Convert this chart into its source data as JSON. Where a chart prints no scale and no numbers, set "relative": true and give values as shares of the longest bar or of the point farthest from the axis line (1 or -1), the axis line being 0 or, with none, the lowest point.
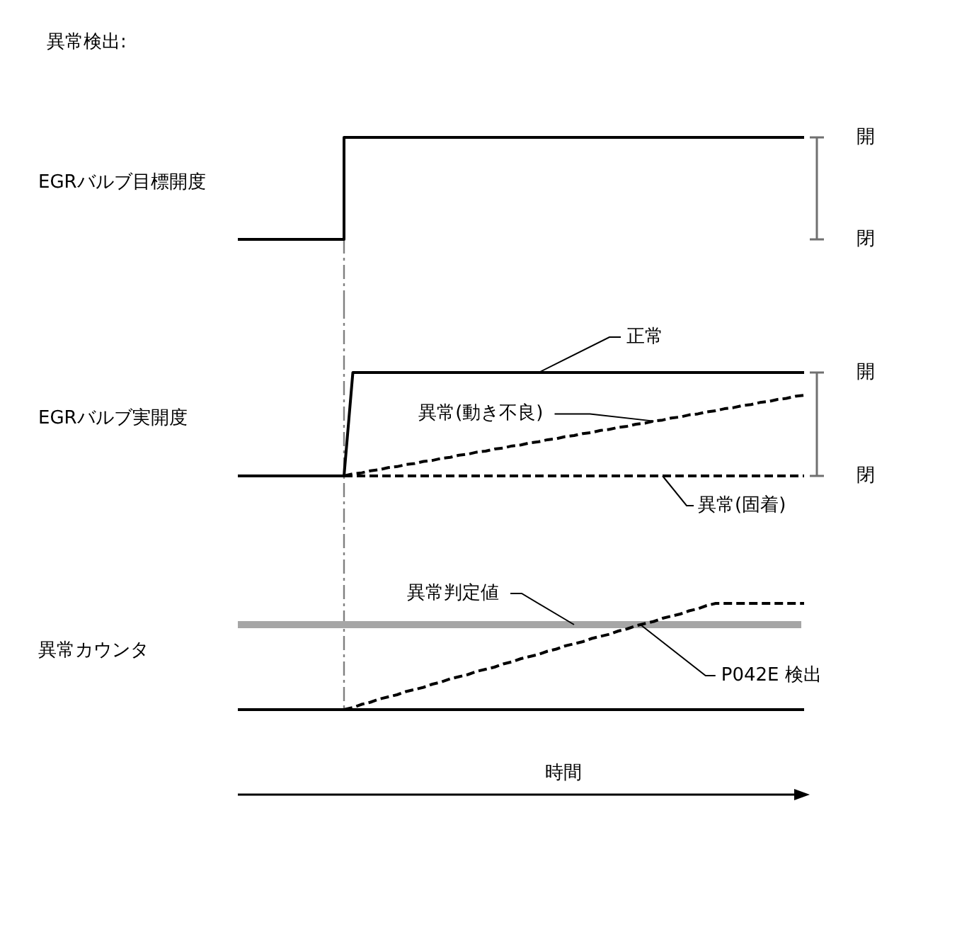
{
  "chart_data": [
    {
      "type": "step",
      "title": "異常検出:",
      "ylabel": "EGRバルブ目標開度",
      "relative": true,
      "categories": [
        null,
        null,
        null,
        null,
        null,
        null,
        null,
        null,
        null,
        null,
        null,
        null,
        null,
        null,
        null,
        null,
        null,
        null,
        null,
        null,
        null,
        null,
        null,
        null,
        null,
        null,
        null,
        null,
        null,
        null,
        null,
        null,
        null,
        null,
        null,
        null,
        null,
        null,
        null,
        null,
        null,
        null,
        null,
        null,
        null,
        null,
        null,
        null,
        null,
        null,
        null,
        null,
        null,
        null,
        null,
        null,
        null,
        null,
        null,
        null,
        null,
        null,
        null,
        null,
        null
      ],
      "series": [
        {
          "color": "#000000",
          "values": [
            0,
            0,
            0,
            0,
            0,
            0,
            0,
            0,
            0,
            0,
            0,
            0,
            1,
            1,
            1,
            1,
            1,
            1,
            1,
            1,
            1,
            1,
            1,
            1,
            1,
            1,
            1,
            1,
            1,
            1,
            1,
            1,
            1,
            1,
            1,
            1,
            1,
            1,
            1,
            1,
            1,
            1,
            1,
            1,
            1,
            1,
            1,
            1,
            1,
            1,
            1,
            1,
            1,
            1,
            1,
            1,
            1,
            1,
            1,
            1,
            1,
            1,
            1,
            1,
            1
          ]
        }
      ],
      "annotations": [
        "開",
        "閉"
      ]
    },
    {
      "type": "line",
      "ylabel": "EGRバルブ実開度",
      "relative": true,
      "categories": [
        null,
        null,
        null,
        null,
        null,
        null,
        null,
        null,
        null,
        null,
        null,
        null,
        null,
        null,
        null,
        null,
        null,
        null,
        null,
        null,
        null,
        null,
        null,
        null,
        null,
        null,
        null,
        null,
        null,
        null,
        null,
        null,
        null,
        null,
        null,
        null,
        null,
        null,
        null,
        null,
        null,
        null,
        null,
        null,
        null,
        null,
        null,
        null,
        null,
        null,
        null,
        null,
        null,
        null,
        null,
        null,
        null,
        null,
        null,
        null,
        null,
        null,
        null,
        null,
        null
      ],
      "series": [
        {
          "name": "正常",
          "color": "#000000",
          "values": [
            0,
            0,
            0,
            0,
            0,
            0,
            0,
            0,
            0,
            0,
            0,
            0,
            0,
            1,
            1,
            1,
            1,
            1,
            1,
            1,
            1,
            1,
            1,
            1,
            1,
            1,
            1,
            1,
            1,
            1,
            1,
            1,
            1,
            1,
            1,
            1,
            1,
            1,
            1,
            1,
            1,
            1,
            1,
            1,
            1,
            1,
            1,
            1,
            1,
            1,
            1,
            1,
            1,
            1,
            1,
            1,
            1,
            1,
            1,
            1,
            1,
            1,
            1,
            1,
            1
          ]
        },
        {
          "name": "異常(動き不良)",
          "color": "#000000",
          "line_style": "dashed",
          "values": [
            null,
            null,
            null,
            null,
            null,
            null,
            null,
            null,
            null,
            null,
            null,
            null,
            0,
            0.02,
            0.03,
            0.05,
            0.06,
            0.08,
            0.09,
            0.11,
            0.12,
            0.14,
            0.15,
            0.17,
            0.18,
            0.2,
            0.21,
            0.23,
            0.24,
            0.26,
            0.27,
            0.29,
            0.3,
            0.32,
            0.33,
            0.35,
            0.36,
            0.38,
            0.39,
            0.41,
            0.42,
            0.44,
            0.45,
            0.47,
            0.48,
            0.5,
            0.51,
            0.53,
            0.54,
            0.56,
            0.57,
            0.59,
            0.6,
            0.62,
            0.63,
            0.65,
            0.66,
            0.68,
            0.69,
            0.71,
            0.72,
            0.74,
            0.75,
            0.77,
            0.78
          ]
        },
        {
          "name": "異常(固着)",
          "color": "#000000",
          "line_style": "dashed",
          "values": [
            null,
            null,
            null,
            null,
            null,
            null,
            null,
            null,
            null,
            null,
            null,
            null,
            0,
            0,
            0,
            0,
            0,
            0,
            0,
            0,
            0,
            0,
            0,
            0,
            0,
            0,
            0,
            0,
            0,
            0,
            0,
            0,
            0,
            0,
            0,
            0,
            0,
            0,
            0,
            0,
            0,
            0,
            0,
            0,
            0,
            0,
            0,
            0,
            0,
            0,
            0,
            0,
            0,
            0,
            0,
            0,
            0,
            0,
            0,
            0,
            0,
            0,
            0,
            0,
            0
          ]
        }
      ],
      "annotations": [
        "開",
        "閉"
      ]
    },
    {
      "type": "line",
      "ylabel": "異常カウンタ",
      "xlabel": "時間",
      "relative": true,
      "categories": [
        null,
        null,
        null,
        null,
        null,
        null,
        null,
        null,
        null,
        null,
        null,
        null,
        null,
        null,
        null,
        null,
        null,
        null,
        null,
        null,
        null,
        null,
        null,
        null,
        null,
        null,
        null,
        null,
        null,
        null,
        null,
        null,
        null,
        null,
        null,
        null,
        null,
        null,
        null,
        null,
        null,
        null,
        null,
        null,
        null,
        null,
        null,
        null,
        null,
        null,
        null,
        null,
        null,
        null,
        null,
        null,
        null,
        null,
        null,
        null,
        null,
        null,
        null,
        null,
        null
      ],
      "series": [
        {
          "color": "#000000",
          "values": [
            0,
            0,
            0,
            0,
            0,
            0,
            0,
            0,
            0,
            0,
            0,
            0,
            0,
            0,
            0,
            0,
            0,
            0,
            0,
            0,
            0,
            0,
            0,
            0,
            0,
            0,
            0,
            0,
            0,
            0,
            0,
            0,
            0,
            0,
            0,
            0,
            0,
            0,
            0,
            0,
            0,
            0,
            0,
            0,
            0,
            0,
            0,
            0,
            0,
            0,
            0,
            0,
            0,
            0,
            0,
            0,
            0,
            0,
            0,
            0,
            0,
            0,
            0,
            0,
            0
          ]
        },
        {
          "color": "#000000",
          "line_style": "dashed",
          "values": [
            null,
            null,
            null,
            null,
            null,
            null,
            null,
            null,
            null,
            null,
            null,
            null,
            0,
            0.02,
            0.05,
            0.07,
            0.1,
            0.12,
            0.14,
            0.17,
            0.19,
            0.21,
            0.24,
            0.26,
            0.29,
            0.31,
            0.33,
            0.36,
            0.38,
            0.4,
            0.43,
            0.45,
            0.48,
            0.5,
            0.52,
            0.55,
            0.57,
            0.6,
            0.62,
            0.64,
            0.67,
            0.69,
            0.71,
            0.74,
            0.76,
            0.79,
            0.81,
            0.83,
            0.86,
            0.88,
            0.9,
            0.93,
            0.95,
            0.98,
            1,
            1,
            1,
            1,
            1,
            1,
            1,
            1,
            1,
            1,
            1
          ]
        }
      ],
      "ref_lines": [
        {
          "axis": "y",
          "value": 0.8,
          "label": "異常判定値",
          "color": "#a6a6a6"
        }
      ],
      "annotations": [
        {
          "text": "P042E 検出",
          "y": 0.8
        }
      ]
    }
  ]
}
